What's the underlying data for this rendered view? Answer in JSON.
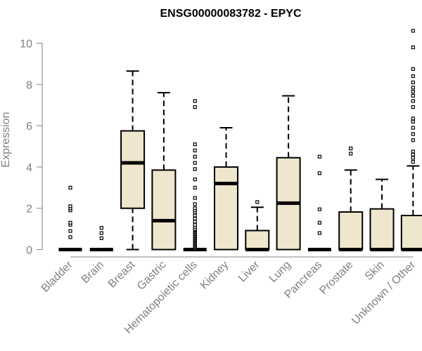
{
  "chart_data": {
    "type": "boxplot",
    "title": "ENSG00000083782 - EPYC",
    "ylabel": "Expression",
    "xlabel": "",
    "ylim": [
      0,
      10.6
    ],
    "yticks": [
      0,
      2,
      4,
      6,
      8,
      10
    ],
    "colors": {
      "box_fill": "#EEE6CD",
      "stroke": "#000000",
      "axis": "#808080",
      "title": "#000000"
    },
    "categories": [
      "Bladder",
      "Brain",
      "Breast",
      "Gastric",
      "Hematopoietic cells",
      "Kidney",
      "Liver",
      "Lung",
      "Pancreas",
      "Prostate",
      "Skin",
      "Unknown / Other"
    ],
    "boxes": [
      {
        "category": "Bladder",
        "whisker_low": 0,
        "q1": 0,
        "median": 0,
        "q3": 0,
        "whisker_high": 0,
        "outliers": [
          0.6,
          0.9,
          1.2,
          1.3,
          1.9,
          2.0,
          2.1,
          3.0
        ]
      },
      {
        "category": "Brain",
        "whisker_low": 0,
        "q1": 0,
        "median": 0,
        "q3": 0,
        "whisker_high": 0,
        "outliers": [
          0.55,
          0.8,
          1.05
        ]
      },
      {
        "category": "Breast",
        "whisker_low": 0,
        "q1": 2.0,
        "median": 4.2,
        "q3": 5.75,
        "whisker_high": 8.65,
        "outliers": []
      },
      {
        "category": "Gastric",
        "whisker_low": 0,
        "q1": 0,
        "median": 1.4,
        "q3": 3.85,
        "whisker_high": 7.6,
        "outliers": []
      },
      {
        "category": "Hematopoietic cells",
        "whisker_low": 0,
        "q1": 0,
        "median": 0,
        "q3": 0,
        "whisker_high": 0,
        "outliers": [
          0.05,
          0.1,
          0.15,
          0.2,
          0.25,
          0.3,
          0.35,
          0.4,
          0.45,
          0.5,
          0.55,
          0.6,
          0.65,
          0.7,
          0.75,
          0.8,
          0.85,
          0.9,
          0.95,
          1.0,
          1.1,
          1.2,
          1.35,
          1.5,
          1.65,
          1.8,
          1.9,
          2.0,
          2.2,
          2.5,
          3.0,
          3.4,
          3.9,
          4.2,
          4.5,
          4.8,
          5.1,
          6.9,
          7.2
        ]
      },
      {
        "category": "Kidney",
        "whisker_low": 0,
        "q1": 0,
        "median": 3.2,
        "q3": 4.0,
        "whisker_high": 5.9,
        "outliers": []
      },
      {
        "category": "Liver",
        "whisker_low": 0,
        "q1": 0,
        "median": 0,
        "q3": 0.92,
        "whisker_high": 2.05,
        "outliers": [
          2.3
        ]
      },
      {
        "category": "Lung",
        "whisker_low": 0,
        "q1": 0,
        "median": 2.25,
        "q3": 4.45,
        "whisker_high": 7.45,
        "outliers": []
      },
      {
        "category": "Pancreas",
        "whisker_low": 0,
        "q1": 0,
        "median": 0,
        "q3": 0,
        "whisker_high": 0,
        "outliers": [
          0.8,
          1.3,
          1.95,
          3.7,
          4.5
        ]
      },
      {
        "category": "Prostate",
        "whisker_low": 0,
        "q1": 0,
        "median": 0,
        "q3": 1.82,
        "whisker_high": 3.85,
        "outliers": [
          4.65,
          4.9
        ]
      },
      {
        "category": "Skin",
        "whisker_low": 0,
        "q1": 0,
        "median": 0,
        "q3": 1.97,
        "whisker_high": 3.4,
        "outliers": []
      },
      {
        "category": "Unknown / Other",
        "whisker_low": 0,
        "q1": 0,
        "median": 0,
        "q3": 1.65,
        "whisker_high": 4.05,
        "outliers": [
          4.25,
          4.45,
          4.6,
          4.75,
          5.3,
          5.6,
          5.9,
          6.2,
          6.35,
          6.9,
          7.2,
          7.45,
          7.65,
          7.85,
          8.1,
          8.4,
          8.75,
          9.8,
          10.6
        ]
      }
    ]
  }
}
